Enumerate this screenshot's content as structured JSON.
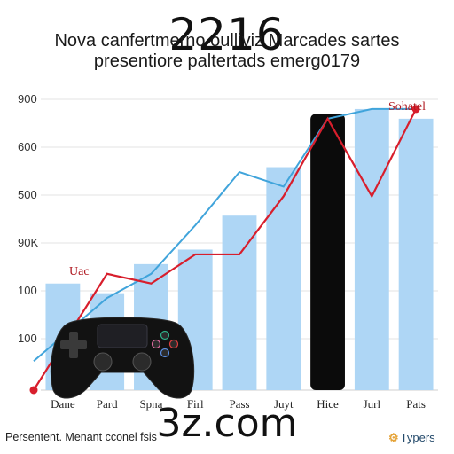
{
  "chart_data": {
    "type": "bar",
    "title": "Nova canfertmerno oulliviz Marcades sartes",
    "subtitle": "presentiore paltertads emerg0179",
    "overlay_number": "2216",
    "watermark": "3z.com",
    "footer": "Persentent. Menant cconel fsis",
    "brand": "Typers",
    "y_tick_labels": [
      "900",
      "600",
      "500",
      "90K",
      "100",
      "100"
    ],
    "categories": [
      "Dane",
      "Pard",
      "Spna",
      "Firl",
      "Pass",
      "Juyt",
      "Hice",
      "Jurl",
      "Pats"
    ],
    "ylim": [
      0,
      6
    ],
    "values": [
      2.2,
      2.0,
      2.6,
      2.9,
      3.6,
      4.6,
      5.7,
      5.8,
      5.6
    ],
    "highlight_index": 6,
    "blue_line": [
      0.6,
      1.9,
      2.4,
      3.4,
      4.5,
      4.2,
      5.6,
      5.8,
      5.8
    ],
    "red_line": [
      0.0,
      2.4,
      2.2,
      2.8,
      2.8,
      4.0,
      5.6,
      4.0,
      5.8
    ],
    "annotations": {
      "left": "Uac",
      "right": "Sohatel"
    },
    "colors": {
      "bar": "#aed6f5",
      "highlight_bar": "#0b0b0b",
      "blue_line": "#40a4db",
      "red_line": "#d81e2c",
      "grid": "#e3e3e3"
    },
    "grid": true,
    "icon": "game-controller-icon"
  }
}
